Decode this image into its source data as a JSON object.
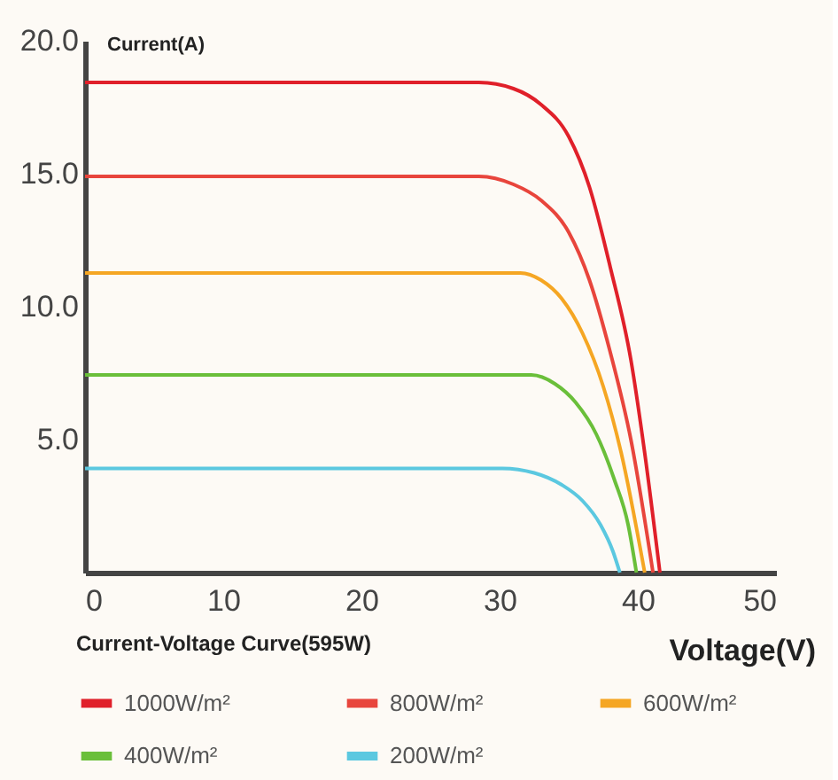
{
  "chart_data": {
    "type": "line",
    "xlabel": "Voltage(V)",
    "ylabel": "Current(A)",
    "annotations": [
      "Current-Voltage Curve(595W)"
    ],
    "xlim": [
      0,
      50
    ],
    "xticks": [
      0,
      10,
      20,
      30,
      40,
      50
    ],
    "ylim": [
      0,
      20
    ],
    "yticks": [
      {
        "value": 5,
        "label": "5.0"
      },
      {
        "value": 10,
        "label": "10.0"
      },
      {
        "value": 15,
        "label": "15.0"
      },
      {
        "value": 20,
        "label": "20.0"
      }
    ],
    "grid": false,
    "legend": "bottom",
    "marker": "none",
    "line_style": "solid",
    "series": [
      {
        "name": "1000W/m²",
        "color": "#e0202a",
        "x": [
          0,
          28.5,
          31,
          33,
          35,
          36.5,
          38,
          39.5,
          40.5,
          41.6
        ],
        "values": [
          18.43,
          18.43,
          18.2,
          17.6,
          16.4,
          14.5,
          11.5,
          8,
          4.5,
          0
        ]
      },
      {
        "name": "800W/m²",
        "color": "#e8453c",
        "x": [
          0,
          28.5,
          31,
          33,
          35,
          36.5,
          38,
          39.5,
          41.1
        ],
        "values": [
          14.9,
          14.9,
          14.6,
          14.0,
          12.8,
          11.0,
          8.3,
          5,
          0
        ]
      },
      {
        "name": "600W/m²",
        "color": "#f5a623",
        "x": [
          0,
          31.5,
          33,
          34.5,
          36,
          37.5,
          38.8,
          40.5
        ],
        "values": [
          11.27,
          11.27,
          11.0,
          10.3,
          9.0,
          7.0,
          4.5,
          0
        ]
      },
      {
        "name": "400W/m²",
        "color": "#6abf3a",
        "x": [
          0,
          32.3,
          34,
          35.5,
          37,
          38.3,
          39.3,
          39.9
        ],
        "values": [
          7.43,
          7.43,
          7.1,
          6.4,
          5.2,
          3.5,
          1.8,
          0
        ]
      },
      {
        "name": "200W/m²",
        "color": "#5bc8e0",
        "x": [
          0,
          30.2,
          32.5,
          34.5,
          36,
          37.3,
          38.2,
          38.7
        ],
        "values": [
          3.92,
          3.92,
          3.75,
          3.3,
          2.7,
          1.8,
          0.8,
          0
        ]
      }
    ]
  }
}
